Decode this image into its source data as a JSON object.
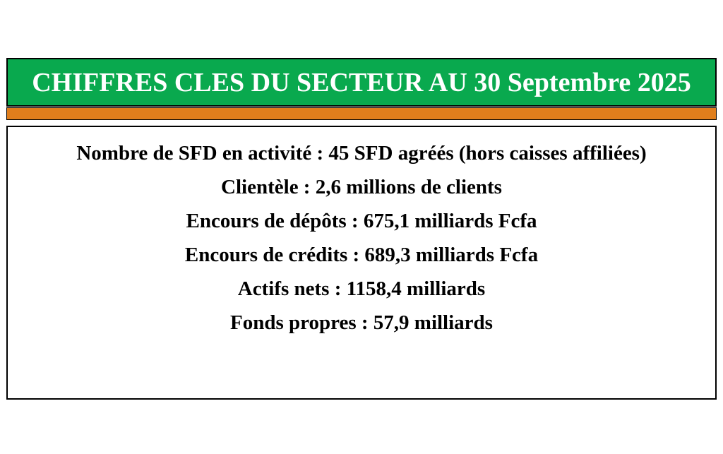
{
  "header": {
    "title": "CHIFFRES CLES DU SECTEUR AU 30 Septembre 2025",
    "bg_color": "#09a94e",
    "text_color": "#ffffff"
  },
  "divider": {
    "color": "#e07e1c"
  },
  "stats": {
    "lines": [
      "Nombre de SFD en activité : 45 SFD agréés (hors caisses affiliées)",
      "Clientèle : 2,6 millions de clients",
      "Encours de dépôts : 675,1 milliards Fcfa",
      "Encours de crédits : 689,3 milliards Fcfa",
      "Actifs nets : 1158,4 milliards",
      "Fonds propres : 57,9 milliards"
    ]
  }
}
